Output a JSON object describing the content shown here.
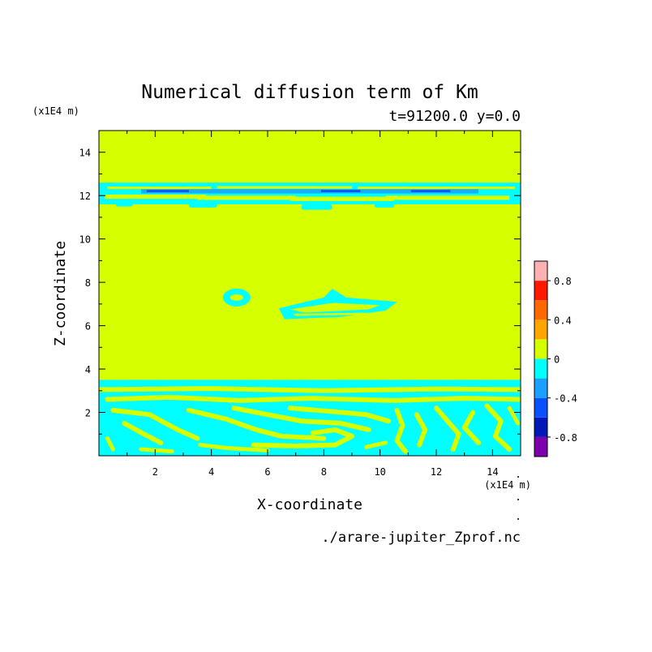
{
  "chart_data": {
    "type": "heatmap",
    "title": "Numerical diffusion term of Km",
    "subtitle": "t=91200.0 y=0.0",
    "xlabel": "X-coordinate",
    "ylabel": "Z-coordinate",
    "x_unit": "(x1E4 m)",
    "y_unit": "(x1E4 m)",
    "xlim": [
      0,
      15
    ],
    "ylim": [
      0,
      15
    ],
    "x_ticks": [
      2,
      4,
      6,
      8,
      10,
      12,
      14
    ],
    "y_ticks": [
      2,
      4,
      6,
      8,
      10,
      12,
      14
    ],
    "x_tick_labels": [
      "2",
      "4",
      "6",
      "8",
      "10",
      "12",
      "14"
    ],
    "y_tick_labels": [
      "2",
      "4",
      "6",
      "8",
      "10",
      "12",
      "14"
    ],
    "background_level": "0 to 0.2",
    "colorbar": {
      "range": [
        -1,
        1
      ],
      "levels": [
        {
          "from": -1.0,
          "to": -0.8,
          "color": "#7d00ad"
        },
        {
          "from": -0.8,
          "to": -0.6,
          "color": "#0018b8"
        },
        {
          "from": -0.6,
          "to": -0.4,
          "color": "#0a50ff"
        },
        {
          "from": -0.4,
          "to": -0.2,
          "color": "#1aa0ff"
        },
        {
          "from": -0.2,
          "to": 0.0,
          "color": "#00ffff"
        },
        {
          "from": 0.0,
          "to": 0.2,
          "color": "#d6ff00"
        },
        {
          "from": 0.2,
          "to": 0.4,
          "color": "#ffa500"
        },
        {
          "from": 0.4,
          "to": 0.6,
          "color": "#ff6800"
        },
        {
          "from": 0.6,
          "to": 0.8,
          "color": "#ff1800"
        },
        {
          "from": 0.8,
          "to": 1.0,
          "color": "#ffb0b0"
        }
      ],
      "tick_values": [
        0.8,
        0.4,
        0,
        -0.4,
        -0.8
      ],
      "tick_labels": [
        "0.8",
        "0.4",
        "0",
        "-0.4",
        "-0.8"
      ]
    },
    "features": [
      {
        "name": "upper-band",
        "level": "-0.2 to 0",
        "x_range": [
          0,
          15
        ],
        "z_range": [
          11.6,
          12.6
        ]
      },
      {
        "name": "upper-band-core",
        "level": "-0.6 to -0.2",
        "x_range": [
          1.5,
          13.5
        ],
        "z_range": [
          12.1,
          12.3
        ]
      },
      {
        "name": "small-eddy",
        "level": "-0.2 to 0",
        "x_center": 4.9,
        "z_center": 7.3
      },
      {
        "name": "mid-eddy",
        "level": "-0.2 to 0",
        "x_range": [
          6.3,
          10.5
        ],
        "z_range": [
          6.3,
          7.7
        ]
      },
      {
        "name": "lower-turbulent-layer",
        "level": "-0.2 to 0",
        "x_range": [
          0,
          15
        ],
        "z_range": [
          0,
          3.5
        ]
      }
    ]
  },
  "footer": {
    "file": "./arare-jupiter_Zprof.nc"
  },
  "colors": {
    "frame": "#000000"
  }
}
